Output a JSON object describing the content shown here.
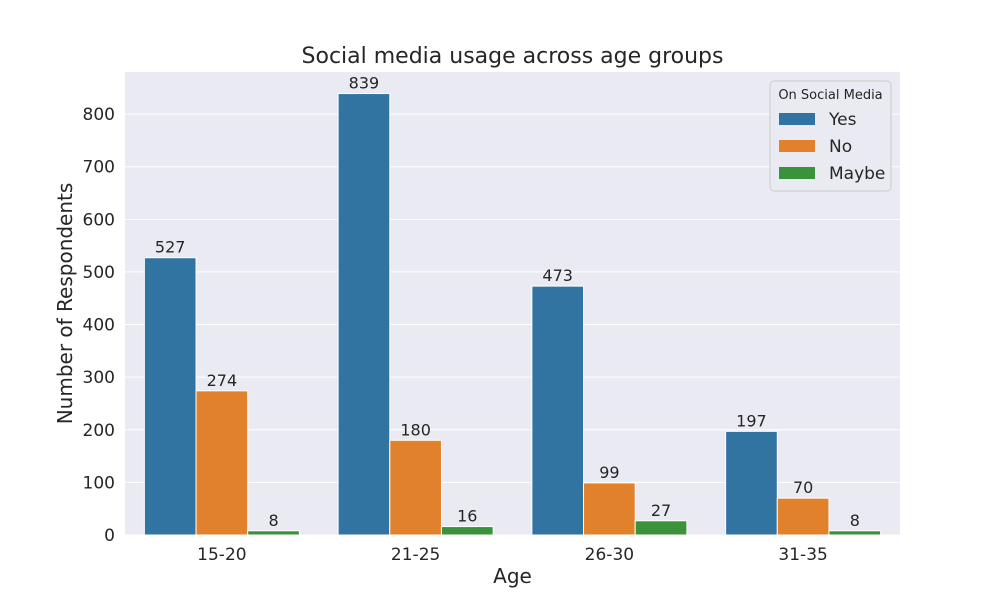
{
  "chart_data": {
    "type": "bar",
    "title": "Social media usage across age groups",
    "xlabel": "Age",
    "ylabel": "Number of Respondents",
    "categories": [
      "15-20",
      "21-25",
      "26-30",
      "31-35"
    ],
    "series": [
      {
        "name": "Yes",
        "color": "#3274a1",
        "values": [
          527,
          839,
          473,
          197
        ]
      },
      {
        "name": "No",
        "color": "#e1812c",
        "values": [
          274,
          180,
          99,
          70
        ]
      },
      {
        "name": "Maybe",
        "color": "#3a923a",
        "values": [
          8,
          16,
          27,
          8
        ]
      }
    ],
    "ylim": [
      0,
      880
    ],
    "yticks": [
      0,
      100,
      200,
      300,
      400,
      500,
      600,
      700,
      800
    ],
    "grid": true,
    "legend": {
      "title": "On Social Media",
      "placement": "top-right"
    }
  }
}
